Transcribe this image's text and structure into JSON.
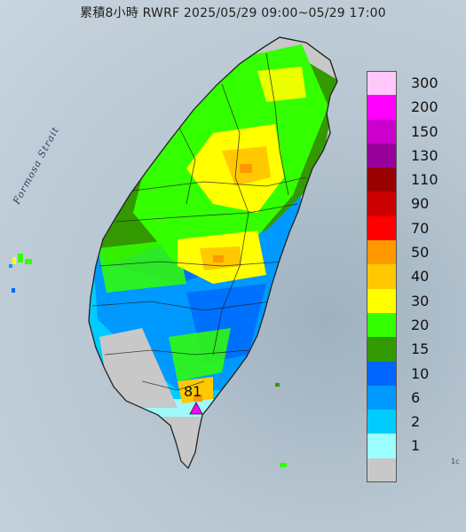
{
  "title": "累積8小時 RWRF 2025/05/29 09:00~05/29 17:00",
  "strait_label": "Formosa Strait",
  "max_value": "81",
  "corner_text": "1c",
  "legend": [
    {
      "label": "300",
      "color": "#ffc8f8"
    },
    {
      "label": "200",
      "color": "#ff00ff"
    },
    {
      "label": "150",
      "color": "#cc00cc"
    },
    {
      "label": "130",
      "color": "#990099"
    },
    {
      "label": "110",
      "color": "#990000"
    },
    {
      "label": "90",
      "color": "#cc0000"
    },
    {
      "label": "70",
      "color": "#ff0000"
    },
    {
      "label": "50",
      "color": "#ff9900"
    },
    {
      "label": "40",
      "color": "#ffc800"
    },
    {
      "label": "30",
      "color": "#ffff00"
    },
    {
      "label": "20",
      "color": "#33ff00"
    },
    {
      "label": "15",
      "color": "#339900"
    },
    {
      "label": "10",
      "color": "#0066ff"
    },
    {
      "label": "6",
      "color": "#0099ff"
    },
    {
      "label": "2",
      "color": "#00ccff"
    },
    {
      "label": "1",
      "color": "#99ffff"
    },
    {
      "label": "",
      "color": "#c8c8c8"
    }
  ]
}
